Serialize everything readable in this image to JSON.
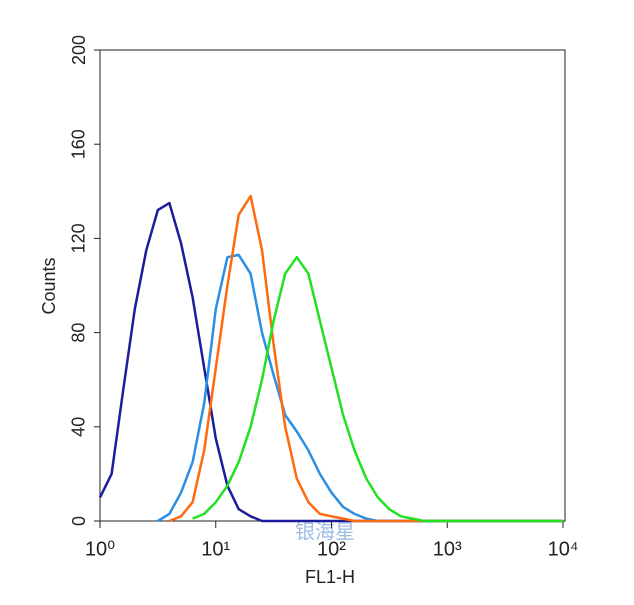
{
  "chart_data": {
    "type": "line",
    "x_label": "FL1-H",
    "y_label": "Counts",
    "x_scale": "log",
    "x": [
      1,
      1.26,
      1.58,
      2,
      2.51,
      3.16,
      3.98,
      5.01,
      6.31,
      7.94,
      10,
      12.6,
      15.8,
      20,
      25.1,
      31.6,
      39.8,
      50.1,
      63.1,
      79.4,
      100,
      126,
      158,
      200,
      251,
      316,
      398,
      501,
      631,
      794,
      1000,
      10000
    ],
    "series": [
      {
        "name": "navy",
        "color": "#1c1c9c",
        "values": [
          10,
          20,
          55,
          90,
          115,
          132,
          135,
          118,
          95,
          65,
          35,
          15,
          5,
          2,
          0,
          0,
          0,
          0,
          0,
          0,
          0,
          0,
          0,
          0,
          0,
          0,
          0,
          0,
          0,
          0,
          0,
          0
        ]
      },
      {
        "name": "blue",
        "color": "#2b8fe3",
        "values": [
          null,
          null,
          null,
          null,
          null,
          0,
          3,
          12,
          25,
          50,
          90,
          112,
          113,
          105,
          80,
          62,
          45,
          38,
          30,
          20,
          12,
          6,
          3,
          1,
          0,
          0,
          0,
          0,
          0,
          0,
          0,
          0
        ]
      },
      {
        "name": "orange",
        "color": "#ff6a10",
        "values": [
          null,
          null,
          null,
          null,
          null,
          null,
          0,
          2,
          8,
          30,
          65,
          100,
          130,
          138,
          115,
          75,
          40,
          18,
          8,
          3,
          2,
          1,
          0,
          0,
          0,
          0,
          0,
          0,
          0,
          0,
          0,
          0
        ]
      },
      {
        "name": "green",
        "color": "#22e022",
        "values": [
          null,
          null,
          null,
          null,
          null,
          null,
          null,
          null,
          1,
          3,
          8,
          15,
          25,
          40,
          60,
          85,
          105,
          112,
          105,
          85,
          65,
          45,
          30,
          18,
          10,
          5,
          2,
          1,
          0,
          0,
          0,
          0
        ]
      }
    ],
    "xlim": [
      1,
      10000
    ],
    "xticks": [
      {
        "value": 1,
        "label": "10⁰"
      },
      {
        "value": 10,
        "label": "10¹"
      },
      {
        "value": 100,
        "label": "10²"
      },
      {
        "value": 1000,
        "label": "10³"
      },
      {
        "value": 10000,
        "label": "10⁴"
      }
    ],
    "ylim": [
      0,
      200
    ],
    "yticks": [
      0,
      40,
      80,
      120,
      160,
      200
    ],
    "watermark": "银海星"
  }
}
